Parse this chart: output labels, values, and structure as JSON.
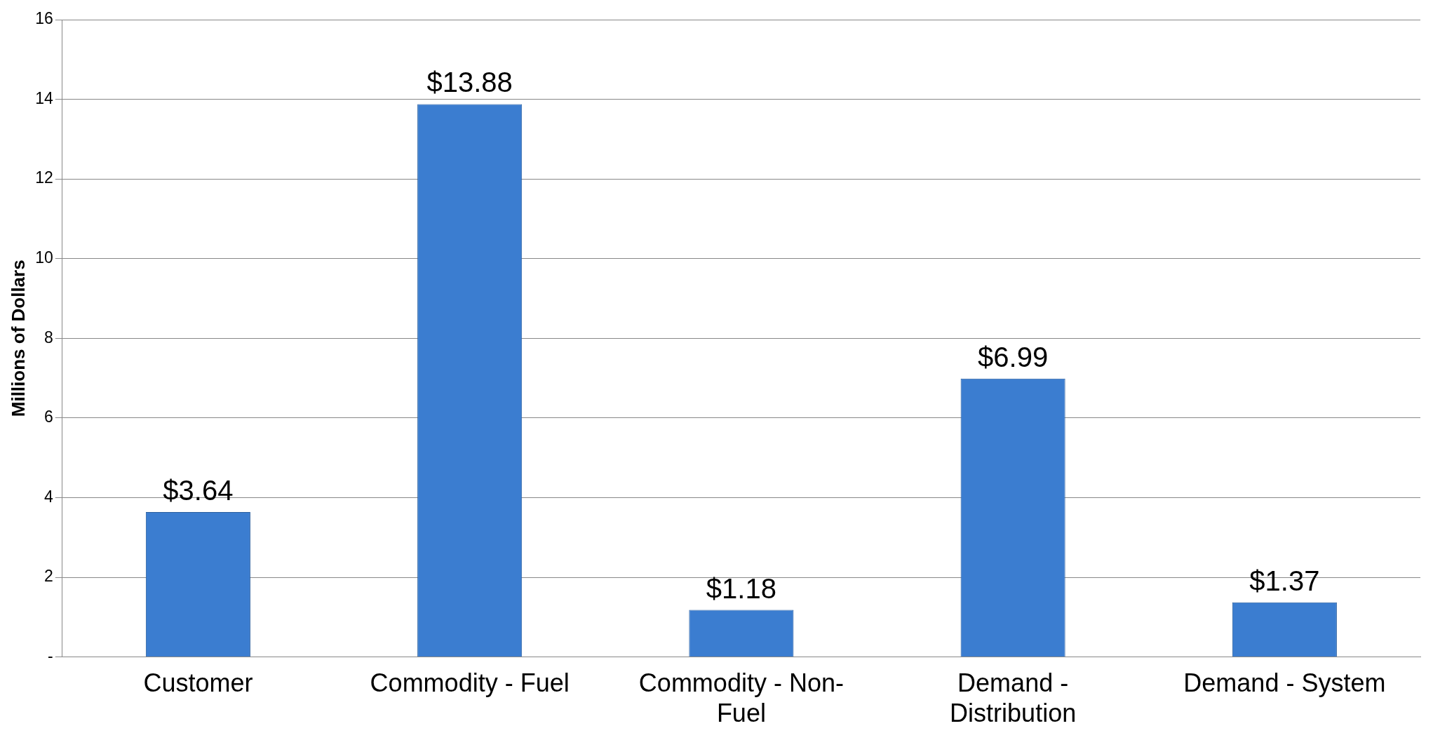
{
  "chart_data": {
    "type": "bar",
    "ylabel": "Millions of Dollars",
    "categories": [
      "Customer",
      "Commodity - Fuel",
      "Commodity - Non-Fuel",
      "Demand - Distribution",
      "Demand - System"
    ],
    "values": [
      3.64,
      13.88,
      1.18,
      6.99,
      1.37
    ],
    "value_labels": [
      "$3.64",
      "$13.88",
      "$1.18",
      "$6.99",
      "$1.37"
    ],
    "color": "#3b7dd0",
    "ylim": [
      0,
      16
    ],
    "yticks": [
      {
        "value": 0,
        "label": "-"
      },
      2,
      4,
      6,
      8,
      10,
      12,
      14,
      16
    ],
    "grid": "y",
    "legend": false
  }
}
